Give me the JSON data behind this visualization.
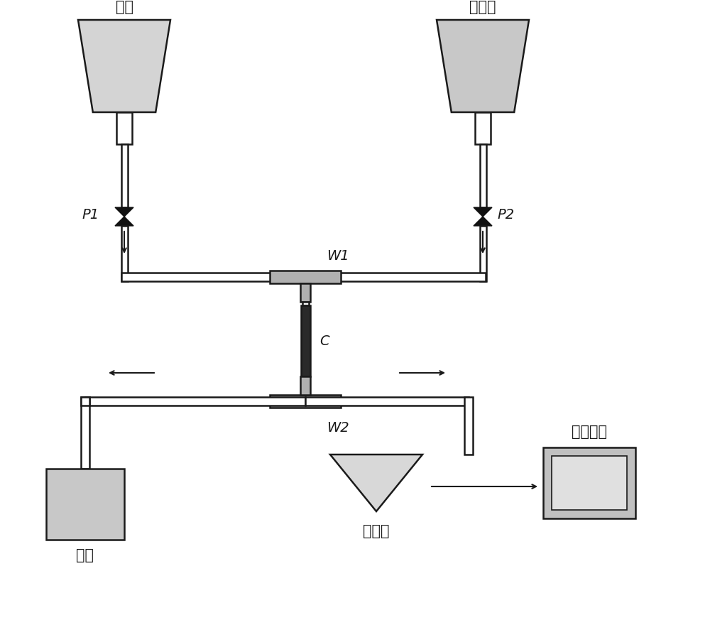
{
  "bg_color": "#ffffff",
  "line_color": "#1a1a1a",
  "fill_bottle_L": "#d4d4d4",
  "fill_bottle_R": "#c8c8c8",
  "fill_tee": "#b0b0b0",
  "fill_col": "#2a2a2a",
  "fill_waste": "#c8c8c8",
  "fill_funnel": "#d8d8d8",
  "fill_uv_outer": "#c0c0c0",
  "fill_uv_inner": "#e0e0e0",
  "labels": {
    "sample": "样品",
    "eluent": "洗脱剂",
    "waste": "废液",
    "enriched": "富集液",
    "uv": "紫外检测",
    "P1": "P1",
    "P2": "P2",
    "W1": "W1",
    "W2": "W2",
    "C": "C"
  },
  "figsize": [
    10.0,
    8.73
  ],
  "dpi": 100
}
